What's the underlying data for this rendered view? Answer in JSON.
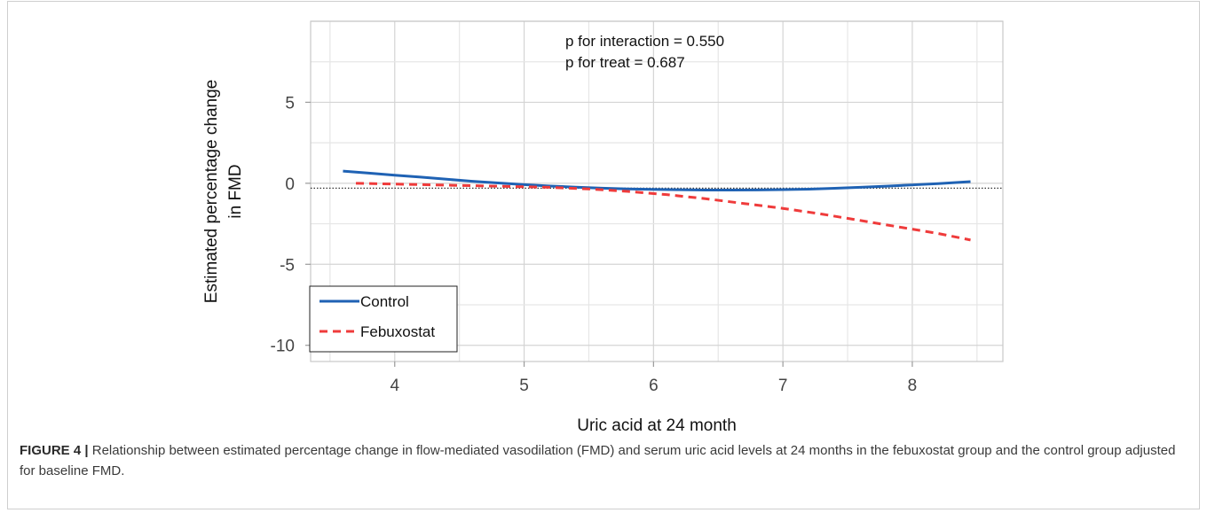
{
  "chart_data": {
    "type": "line",
    "xlabel": "Uric acid  at 24 month",
    "ylabel_lines": [
      "Estimated percentage change",
      "in FMD"
    ],
    "xlim": [
      3.35,
      8.7
    ],
    "ylim": [
      -11,
      10
    ],
    "x_ticks": [
      4,
      5,
      6,
      7,
      8
    ],
    "x_tick_labels": [
      "4",
      "5",
      "6",
      "7",
      "8"
    ],
    "y_ticks": [
      5,
      0,
      -5,
      -10
    ],
    "y_tick_labels": [
      "5",
      "0",
      "-5",
      "-10"
    ],
    "grid": true,
    "reference_line_y": -0.3,
    "annotations": [
      "p for interaction = 0.550",
      "p for treat = 0.687"
    ],
    "legend_placement": "bottom-left",
    "series": [
      {
        "name": "Control",
        "color": "#1f62b4",
        "style": "solid",
        "x": [
          3.6,
          3.8,
          4.0,
          4.2,
          4.4,
          4.6,
          4.8,
          5.0,
          5.2,
          5.4,
          5.6,
          5.8,
          6.0,
          6.2,
          6.4,
          6.6,
          6.8,
          7.0,
          7.2,
          7.4,
          7.6,
          7.8,
          8.0,
          8.2,
          8.45
        ],
        "values": [
          0.75,
          0.63,
          0.5,
          0.38,
          0.25,
          0.12,
          0.02,
          -0.08,
          -0.17,
          -0.24,
          -0.3,
          -0.35,
          -0.38,
          -0.4,
          -0.42,
          -0.42,
          -0.41,
          -0.39,
          -0.36,
          -0.31,
          -0.25,
          -0.18,
          -0.1,
          -0.02,
          0.1
        ]
      },
      {
        "name": "Febuxostat",
        "color": "#ef3b3b",
        "style": "dashed",
        "x": [
          3.7,
          4.0,
          4.3,
          4.6,
          4.9,
          5.2,
          5.5,
          5.8,
          6.1,
          6.4,
          6.7,
          7.0,
          7.3,
          7.6,
          7.9,
          8.2,
          8.45
        ],
        "values": [
          0.0,
          -0.05,
          -0.1,
          -0.15,
          -0.2,
          -0.25,
          -0.35,
          -0.5,
          -0.7,
          -0.95,
          -1.25,
          -1.55,
          -1.9,
          -2.3,
          -2.7,
          -3.1,
          -3.5
        ]
      }
    ]
  },
  "caption": {
    "label": "FIGURE 4",
    "separator": " | ",
    "text": "Relationship between estimated percentage change in flow-mediated vasodilation (FMD) and serum uric acid levels at 24 months in the febuxostat group and the control group adjusted for baseline FMD."
  }
}
